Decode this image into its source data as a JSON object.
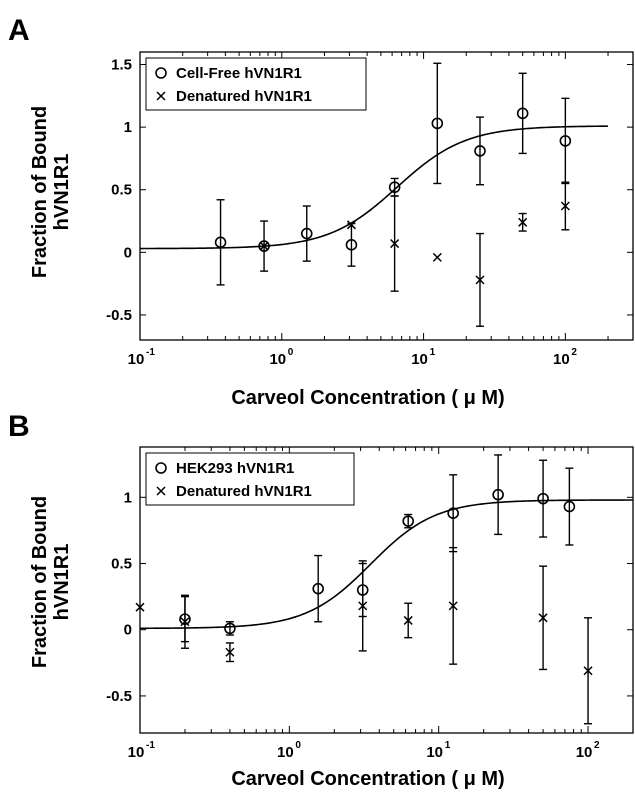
{
  "chart_data": [
    {
      "panel": "A",
      "type": "scatter",
      "xlabel": "Carveol Concentration ( μ M)",
      "ylabel_line1": "Fraction of Bound",
      "ylabel_line2": "hVN1R1",
      "xscale": "log",
      "xlim": [
        0.1,
        300
      ],
      "ylim": [
        -0.7,
        1.6
      ],
      "x_ticks": [
        0.1,
        1,
        10,
        100
      ],
      "x_tick_base": "10",
      "x_tick_exponents": [
        "-1",
        "0",
        "1",
        "2"
      ],
      "y_ticks": [
        -0.5,
        0,
        0.5,
        1,
        1.5
      ],
      "y_tick_labels": [
        "-0.5",
        "0",
        "0.5",
        "1",
        "1.5"
      ],
      "legend_position": "top-left",
      "fit": {
        "bottom": 0.03,
        "top": 1.01,
        "ec50": 6.5,
        "hill": 1.8,
        "x_range": [
          0.1,
          200
        ]
      },
      "series": [
        {
          "name": "Cell-Free hVN1R1",
          "marker": "circle",
          "x": [
            0.37,
            0.75,
            1.5,
            3.1,
            6.25,
            12.5,
            25,
            50,
            100
          ],
          "y": [
            0.08,
            0.05,
            0.15,
            0.06,
            0.52,
            1.03,
            0.81,
            1.11,
            0.89
          ],
          "err": [
            0.34,
            0.2,
            0.22,
            0.17,
            0.07,
            0.48,
            0.27,
            0.32,
            0.34
          ]
        },
        {
          "name": "Denatured hVN1R1",
          "marker": "x",
          "x": [
            0.75,
            3.1,
            6.25,
            12.5,
            25,
            50,
            100
          ],
          "y": [
            0.05,
            0.22,
            0.07,
            -0.04,
            -0.22,
            0.24,
            0.37
          ],
          "err": [
            0,
            0,
            0.38,
            0,
            0.37,
            0.07,
            0.19
          ]
        }
      ]
    },
    {
      "panel": "B",
      "type": "scatter",
      "xlabel": "Carveol Concentration ( μ M)",
      "ylabel_line1": "Fraction of Bound",
      "ylabel_line2": "hVN1R1",
      "xscale": "log",
      "xlim": [
        0.1,
        200
      ],
      "ylim": [
        -0.78,
        1.38
      ],
      "x_ticks": [
        0.1,
        1,
        10,
        100
      ],
      "x_tick_base": "10",
      "x_tick_exponents": [
        "-1",
        "0",
        "1",
        "2"
      ],
      "y_ticks": [
        -0.5,
        0,
        0.5,
        1
      ],
      "y_tick_labels": [
        "-0.5",
        "0",
        "0.5",
        "1"
      ],
      "legend_position": "top-left",
      "fit": {
        "bottom": 0.01,
        "top": 0.98,
        "ec50": 3.5,
        "hill": 2.0,
        "x_range": [
          0.1,
          200
        ]
      },
      "series": [
        {
          "name": "HEK293 hVN1R1",
          "marker": "circle",
          "x": [
            0.2,
            0.4,
            1.56,
            3.1,
            6.25,
            12.5,
            25,
            50,
            75
          ],
          "y": [
            0.08,
            0.01,
            0.31,
            0.3,
            0.82,
            0.88,
            1.02,
            0.99,
            0.93
          ],
          "err": [
            0.17,
            0.05,
            0.25,
            0.2,
            0.05,
            0.29,
            0.3,
            0.29,
            0.29
          ]
        },
        {
          "name": "Denatured hVN1R1",
          "marker": "x",
          "x": [
            0.1,
            0.2,
            0.4,
            3.1,
            6.25,
            12.5,
            50,
            100
          ],
          "y": [
            0.17,
            0.06,
            -0.17,
            0.18,
            0.07,
            0.18,
            0.09,
            -0.31
          ],
          "err": [
            0,
            0.2,
            0.07,
            0.34,
            0.13,
            0.44,
            0.39,
            0.4
          ]
        }
      ]
    }
  ]
}
